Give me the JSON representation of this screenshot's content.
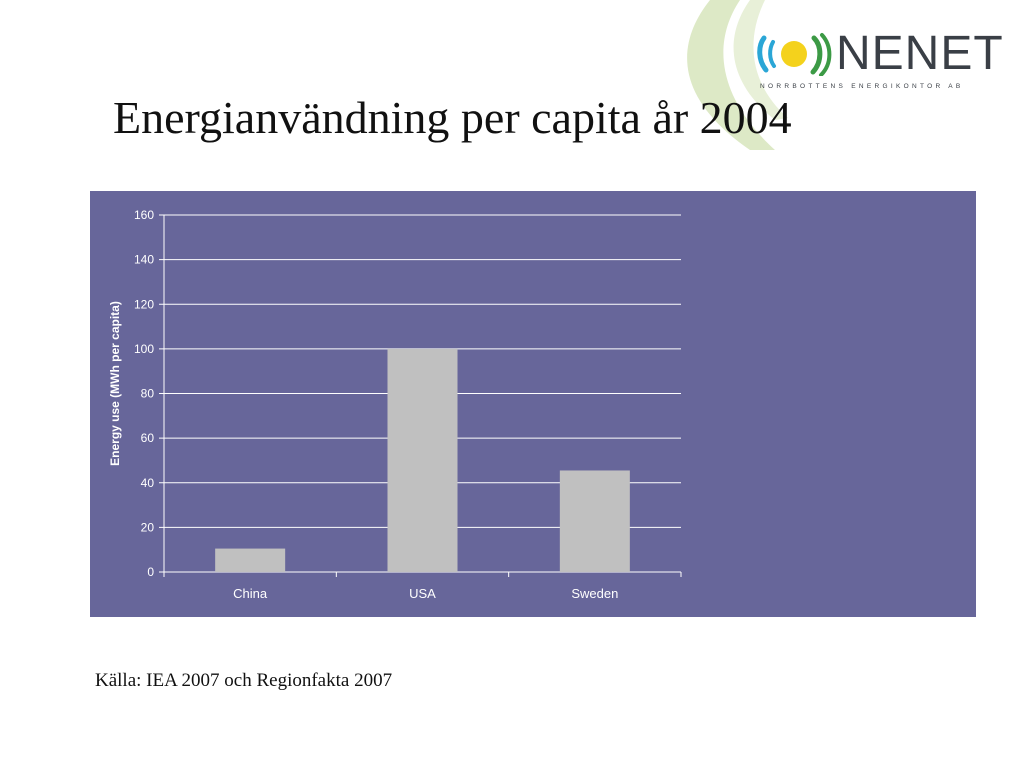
{
  "slide": {
    "title": "Energianvändning per capita år 2004",
    "source": "Källa: IEA 2007 och Regionfakta 2007"
  },
  "logo": {
    "name": "NENET",
    "subtitle": "NORRBOTTENS ENERGIKONTOR AB",
    "colors": {
      "blue": "#2aa6d6",
      "yellow": "#f4d21c",
      "green": "#3c9a45",
      "text": "#3a3f46"
    }
  },
  "colors": {
    "panel": "#67669a",
    "bar": "#c0c0c0",
    "grid": "#ffffff",
    "swoosh": "#dbe9c4"
  },
  "chart_data": {
    "type": "bar",
    "categories": [
      "China",
      "USA",
      "Sweden"
    ],
    "values": [
      10.5,
      100,
      45.5
    ],
    "title": "",
    "xlabel": "",
    "ylabel": "Energy use (MWh per capita)",
    "ylim": [
      0,
      160
    ],
    "yticks": [
      0,
      20,
      40,
      60,
      80,
      100,
      120,
      140,
      160
    ],
    "grid": true,
    "legend": "none"
  }
}
